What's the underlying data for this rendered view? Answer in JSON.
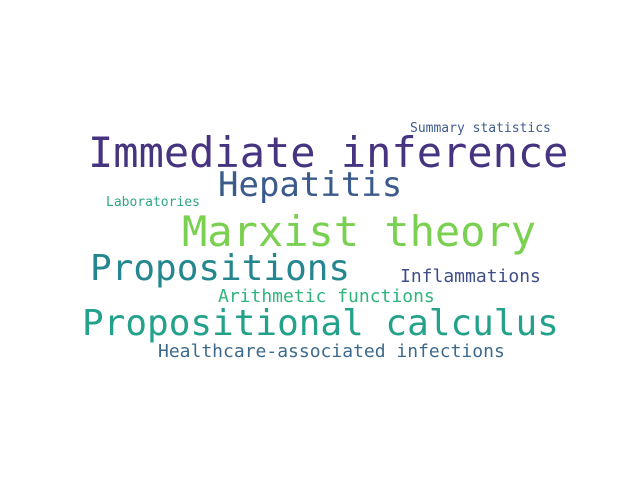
{
  "words": [
    {
      "text": "Immediate inference",
      "color": "#463480"
    },
    {
      "text": "Marxist theory",
      "color": "#7ad151"
    },
    {
      "text": "Propositional calculus",
      "color": "#23a18b"
    },
    {
      "text": "Propositions",
      "color": "#24868e"
    },
    {
      "text": "Hepatitis",
      "color": "#3b5b8c"
    },
    {
      "text": "Healthcare-associated infections",
      "color": "#3d6a8c"
    },
    {
      "text": "Inflammations",
      "color": "#404e88"
    },
    {
      "text": "Arithmetic functions",
      "color": "#2fb47c"
    },
    {
      "text": "Summary statistics",
      "color": "#3e5c8c"
    },
    {
      "text": "Laboratories",
      "color": "#2ea685"
    }
  ]
}
